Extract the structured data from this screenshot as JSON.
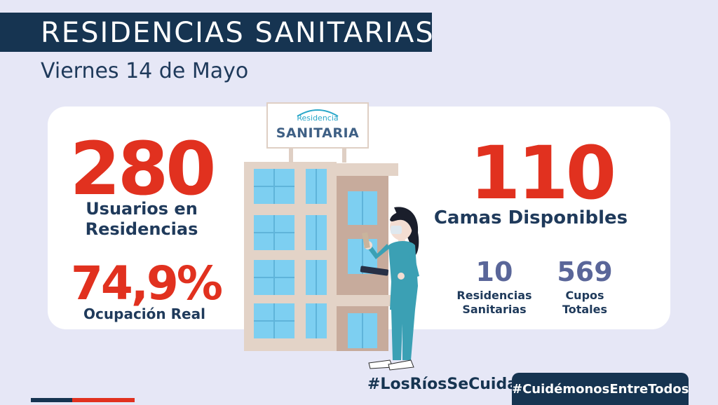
{
  "header": {
    "title": "RESIDENCIAS SANITARIAS",
    "date": "Viernes 14 de Mayo"
  },
  "sign": {
    "top_text": "Residencia",
    "main_text": "SANITARIA"
  },
  "stats": {
    "usuarios": {
      "value": "280",
      "label": "Usuarios en Residencias"
    },
    "ocupacion": {
      "value": "74,9%",
      "label": "Ocupación Real"
    },
    "camas": {
      "value": "110",
      "label": "Camas Disponibles"
    },
    "residencias": {
      "value": "10",
      "label": "Residencias Sanitarias"
    },
    "cupos": {
      "value": "569",
      "label": "Cupos Totales"
    }
  },
  "hashtags": {
    "primary": "#LosRíosSeCuida",
    "secondary": "#CuidémonosEntreTodos"
  },
  "colors": {
    "navy": "#163451",
    "red": "#e1311f",
    "background": "#e6e7f6",
    "slate": "#5a6699"
  }
}
